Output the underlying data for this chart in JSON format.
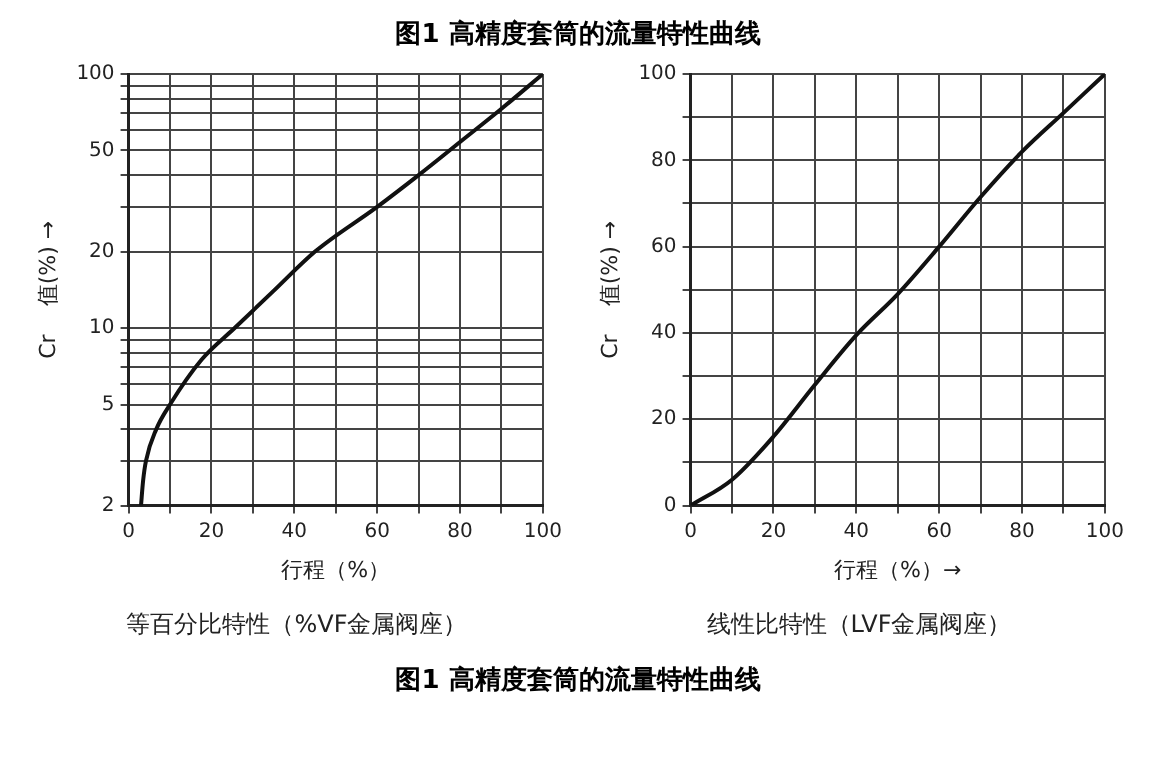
{
  "chart_data": [
    {
      "type": "line",
      "title": "图1  高精度套筒的流量特性曲线",
      "xlabel": "行程（%）",
      "ylabel": "Cr    值(%) →",
      "annotations": [
        "等百分比特性（%VF金属阀座）"
      ],
      "log": "y",
      "grid": true,
      "marker": "none",
      "color": "#111111",
      "x": [
        3,
        3.5,
        4.2,
        6.7,
        10,
        17.6,
        25.6,
        35,
        45,
        60,
        70,
        80,
        90,
        100
      ],
      "values": [
        2,
        2.5,
        3,
        4,
        5,
        7.5,
        10,
        14,
        20,
        30,
        40,
        54,
        73,
        100
      ],
      "xlim": [
        0,
        100
      ],
      "xticks": [
        0,
        {
          "value": 10,
          "label": null
        },
        20,
        {
          "value": 30,
          "label": null
        },
        40,
        {
          "value": 50,
          "label": null
        },
        60,
        {
          "value": 70,
          "label": null
        },
        80,
        {
          "value": 90,
          "label": null
        },
        100
      ],
      "ylim": [
        2,
        100
      ],
      "yticks": [
        2,
        {
          "value": 3,
          "label": null
        },
        {
          "value": 4,
          "label": null
        },
        5,
        {
          "value": 6,
          "label": null
        },
        {
          "value": 7,
          "label": null
        },
        {
          "value": 8,
          "label": null
        },
        {
          "value": 9,
          "label": null
        },
        10,
        20,
        {
          "value": 30,
          "label": null
        },
        {
          "value": 40,
          "label": null
        },
        50,
        {
          "value": 60,
          "label": null
        },
        {
          "value": 70,
          "label": null
        },
        {
          "value": 80,
          "label": null
        },
        {
          "value": 90,
          "label": null
        },
        100
      ]
    },
    {
      "type": "line",
      "title": "图1  高精度套筒的流量特性曲线",
      "xlabel": "行程（%）→",
      "ylabel": "Cr    值(%) →",
      "annotations": [
        "线性比特性（LVF金属阀座）"
      ],
      "grid": true,
      "marker": "none",
      "color": "#111111",
      "x": [
        0,
        10,
        20,
        30,
        40,
        50,
        60,
        70,
        80,
        90,
        100
      ],
      "values": [
        0,
        6,
        16,
        28,
        39.5,
        49,
        60,
        71.5,
        82,
        91,
        100
      ],
      "xlim": [
        0,
        100
      ],
      "xticks": [
        0,
        {
          "value": 10,
          "label": null
        },
        20,
        {
          "value": 30,
          "label": null
        },
        40,
        {
          "value": 50,
          "label": null
        },
        60,
        {
          "value": 70,
          "label": null
        },
        80,
        {
          "value": 90,
          "label": null
        },
        100
      ],
      "ylim": [
        0,
        100
      ],
      "yticks": [
        0,
        {
          "value": 10,
          "label": null
        },
        20,
        {
          "value": 30,
          "label": null
        },
        40,
        {
          "value": 50,
          "label": null
        },
        60,
        {
          "value": 70,
          "label": null
        },
        80,
        {
          "value": 90,
          "label": null
        },
        100
      ]
    }
  ]
}
